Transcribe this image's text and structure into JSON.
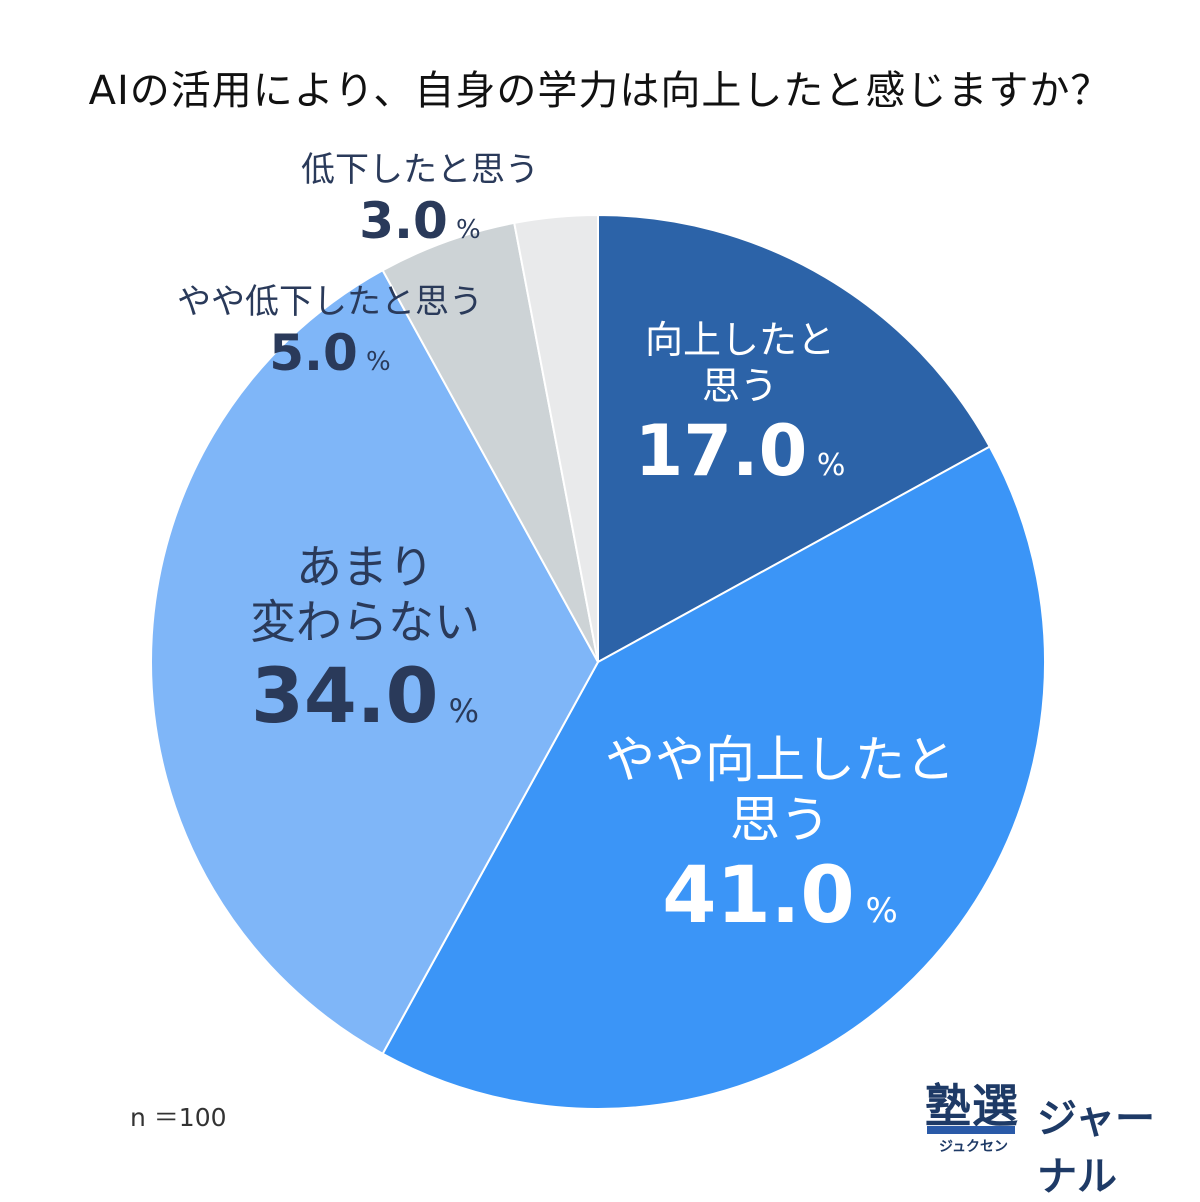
{
  "chart_data": {
    "type": "pie",
    "title": "AIの活用により、自身の学力は向上したと感じますか？",
    "unit": "%",
    "slices": [
      {
        "label": "向上したと\n思う",
        "value": 17.0,
        "value_text": "17.0",
        "color": "#2c63a8",
        "label_color": "#ffffff"
      },
      {
        "label": "やや向上したと\n思う",
        "value": 41.0,
        "value_text": "41.0",
        "color": "#3b95f7",
        "label_color": "#ffffff"
      },
      {
        "label": "あまり\n変わらない",
        "value": 34.0,
        "value_text": "34.0",
        "color": "#7fb6f8",
        "label_color": "#2a3a5a"
      },
      {
        "label": "やや低下したと思う",
        "value": 5.0,
        "value_text": "5.0",
        "color": "#cdd3d6",
        "label_color": "#2a3a5a"
      },
      {
        "label": "低下したと思う",
        "value": 3.0,
        "value_text": "3.0",
        "color": "#e9eaeb",
        "label_color": "#2a3a5a"
      }
    ],
    "start": "12 o'clock",
    "direction": "clockwise",
    "note": "n ＝100"
  },
  "logo": {
    "kanji": "塾選",
    "ruby": "ジュクセン",
    "word": "ジャーナル"
  }
}
